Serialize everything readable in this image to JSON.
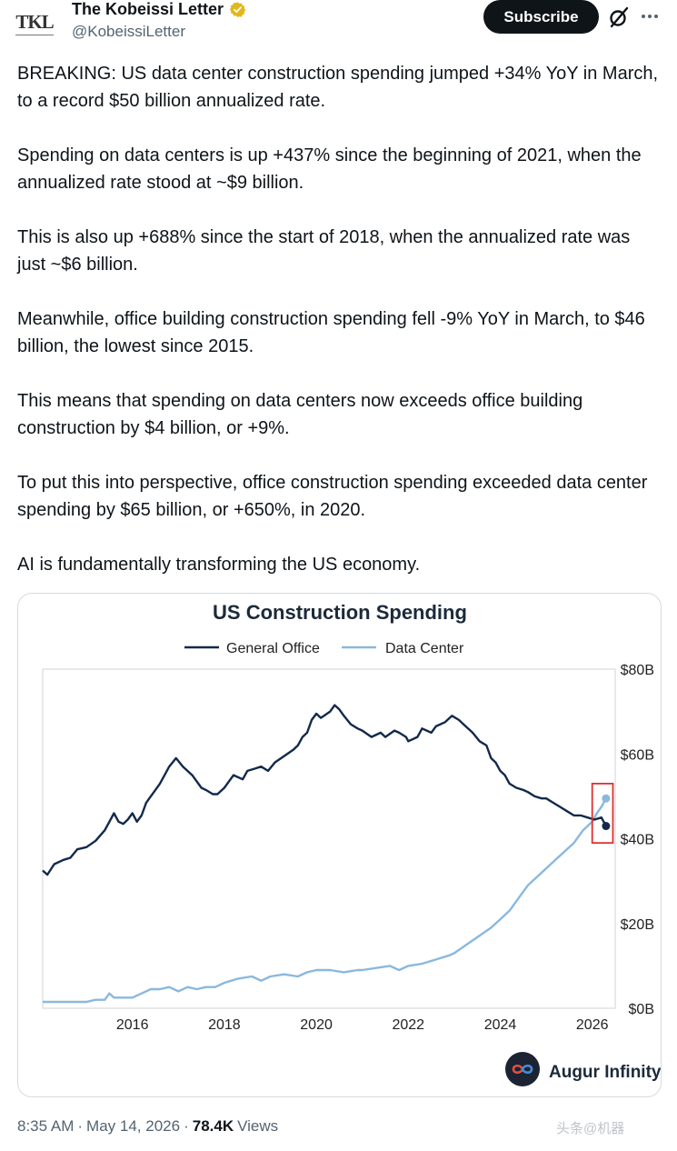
{
  "header": {
    "avatar_text": "TKL",
    "display_name": "The Kobeissi Letter",
    "handle": "@KobeissiLetter",
    "subscribe_label": "Subscribe",
    "icons": [
      "grok-icon",
      "more-icon",
      "verified-badge-icon"
    ]
  },
  "tweet": {
    "paragraphs": [
      "BREAKING: US data center construction spending jumped +34% YoY in March, to a record $50 billion annualized rate.",
      "Spending on data centers is up +437% since the beginning of 2021, when the annualized rate stood at ~$9 billion.",
      "This is also up +688% since the start of 2018, when the annualized rate was just ~$6 billion.",
      "Meanwhile, office building construction spending fell -9% YoY in March, to $46 billion, the lowest since 2015.",
      "This means that spending on data centers now exceeds office building construction by $4 billion, or +9%.",
      "To put this into perspective, office construction spending exceeded data center spending by $65 billion, or +650%, in 2020.",
      "AI is fundamentally transforming the US economy."
    ]
  },
  "chart_data": {
    "type": "line",
    "title": "US Construction Spending",
    "xlabel": "",
    "ylabel": "",
    "x_ticks": [
      "2016",
      "2018",
      "2020",
      "2022",
      "2024",
      "2026"
    ],
    "y_ticks": [
      "$0B",
      "$20B",
      "$40B",
      "$60B",
      "$80B"
    ],
    "xlim": [
      2014.05,
      2026.5
    ],
    "ylim": [
      0,
      80
    ],
    "y_axis_side": "right",
    "legend_position": "top",
    "grid": false,
    "highlight_box": {
      "x": [
        2026.0,
        2026.45
      ],
      "y": [
        39,
        53
      ],
      "color": "#e03030"
    },
    "series": [
      {
        "name": "General Office",
        "color": "#13294b",
        "points": [
          [
            2014.05,
            32.5
          ],
          [
            2014.15,
            31.5
          ],
          [
            2014.3,
            34
          ],
          [
            2014.5,
            35
          ],
          [
            2014.65,
            35.5
          ],
          [
            2014.8,
            37.5
          ],
          [
            2015.0,
            38
          ],
          [
            2015.2,
            39.5
          ],
          [
            2015.4,
            42
          ],
          [
            2015.5,
            44
          ],
          [
            2015.6,
            46
          ],
          [
            2015.7,
            44
          ],
          [
            2015.8,
            43.5
          ],
          [
            2015.9,
            44.5
          ],
          [
            2016.0,
            46
          ],
          [
            2016.1,
            44
          ],
          [
            2016.2,
            45.5
          ],
          [
            2016.3,
            48.5
          ],
          [
            2016.4,
            50
          ],
          [
            2016.5,
            51.5
          ],
          [
            2016.6,
            53
          ],
          [
            2016.7,
            55
          ],
          [
            2016.8,
            57
          ],
          [
            2016.95,
            59
          ],
          [
            2017.1,
            57
          ],
          [
            2017.3,
            55
          ],
          [
            2017.5,
            52
          ],
          [
            2017.6,
            51.5
          ],
          [
            2017.75,
            50.5
          ],
          [
            2017.85,
            50.5
          ],
          [
            2018.0,
            52
          ],
          [
            2018.1,
            53.5
          ],
          [
            2018.2,
            55
          ],
          [
            2018.4,
            54
          ],
          [
            2018.5,
            56
          ],
          [
            2018.65,
            56.5
          ],
          [
            2018.8,
            57
          ],
          [
            2018.95,
            56
          ],
          [
            2019.1,
            58
          ],
          [
            2019.3,
            59.5
          ],
          [
            2019.5,
            61
          ],
          [
            2019.6,
            62
          ],
          [
            2019.7,
            64
          ],
          [
            2019.8,
            65
          ],
          [
            2019.9,
            68
          ],
          [
            2020.0,
            69.5
          ],
          [
            2020.1,
            68.5
          ],
          [
            2020.3,
            70
          ],
          [
            2020.4,
            71.5
          ],
          [
            2020.5,
            70.5
          ],
          [
            2020.6,
            69
          ],
          [
            2020.75,
            67
          ],
          [
            2020.9,
            66
          ],
          [
            2021.0,
            65.5
          ],
          [
            2021.2,
            64
          ],
          [
            2021.4,
            65
          ],
          [
            2021.5,
            64
          ],
          [
            2021.7,
            65.5
          ],
          [
            2021.8,
            65
          ],
          [
            2021.95,
            64
          ],
          [
            2022.0,
            63
          ],
          [
            2022.2,
            64
          ],
          [
            2022.3,
            66
          ],
          [
            2022.5,
            65
          ],
          [
            2022.6,
            66.5
          ],
          [
            2022.8,
            67.5
          ],
          [
            2022.95,
            69
          ],
          [
            2023.1,
            68
          ],
          [
            2023.2,
            67
          ],
          [
            2023.4,
            65
          ],
          [
            2023.55,
            63
          ],
          [
            2023.7,
            62
          ],
          [
            2023.8,
            59
          ],
          [
            2023.9,
            58
          ],
          [
            2024.0,
            56
          ],
          [
            2024.1,
            55
          ],
          [
            2024.2,
            53
          ],
          [
            2024.35,
            52
          ],
          [
            2024.5,
            51.5
          ],
          [
            2024.6,
            51
          ],
          [
            2024.75,
            50
          ],
          [
            2024.9,
            49.5
          ],
          [
            2025.0,
            49.5
          ],
          [
            2025.15,
            48.5
          ],
          [
            2025.3,
            47.5
          ],
          [
            2025.45,
            46.5
          ],
          [
            2025.6,
            45.5
          ],
          [
            2025.75,
            45.5
          ],
          [
            2025.9,
            45
          ],
          [
            2026.05,
            44.5
          ],
          [
            2026.2,
            45
          ],
          [
            2026.3,
            43
          ]
        ]
      },
      {
        "name": "Data Center",
        "color": "#8ab8de",
        "points": [
          [
            2014.05,
            1.5
          ],
          [
            2014.5,
            1.5
          ],
          [
            2015.0,
            1.5
          ],
          [
            2015.2,
            2
          ],
          [
            2015.4,
            2
          ],
          [
            2015.5,
            3.5
          ],
          [
            2015.6,
            2.5
          ],
          [
            2016.0,
            2.5
          ],
          [
            2016.2,
            3.5
          ],
          [
            2016.4,
            4.5
          ],
          [
            2016.6,
            4.5
          ],
          [
            2016.8,
            5
          ],
          [
            2017.0,
            4
          ],
          [
            2017.2,
            5
          ],
          [
            2017.4,
            4.5
          ],
          [
            2017.6,
            5
          ],
          [
            2017.8,
            5
          ],
          [
            2018.0,
            6
          ],
          [
            2018.3,
            7
          ],
          [
            2018.6,
            7.5
          ],
          [
            2018.8,
            6.5
          ],
          [
            2019.0,
            7.5
          ],
          [
            2019.3,
            8
          ],
          [
            2019.6,
            7.5
          ],
          [
            2019.8,
            8.5
          ],
          [
            2020.0,
            9
          ],
          [
            2020.3,
            9
          ],
          [
            2020.6,
            8.5
          ],
          [
            2020.9,
            9
          ],
          [
            2021.0,
            9
          ],
          [
            2021.3,
            9.5
          ],
          [
            2021.6,
            10
          ],
          [
            2021.8,
            9
          ],
          [
            2022.0,
            10
          ],
          [
            2022.3,
            10.5
          ],
          [
            2022.6,
            11.5
          ],
          [
            2022.9,
            12.5
          ],
          [
            2023.0,
            13
          ],
          [
            2023.2,
            14.5
          ],
          [
            2023.4,
            16
          ],
          [
            2023.6,
            17.5
          ],
          [
            2023.8,
            19
          ],
          [
            2024.0,
            21
          ],
          [
            2024.2,
            23
          ],
          [
            2024.4,
            26
          ],
          [
            2024.6,
            29
          ],
          [
            2024.8,
            31
          ],
          [
            2025.0,
            33
          ],
          [
            2025.2,
            35
          ],
          [
            2025.4,
            37
          ],
          [
            2025.6,
            39
          ],
          [
            2025.8,
            42
          ],
          [
            2026.0,
            44
          ],
          [
            2026.1,
            46
          ],
          [
            2026.2,
            47.5
          ],
          [
            2026.3,
            49.5
          ]
        ]
      }
    ]
  },
  "card": {
    "brand_name": "Augur Infinity",
    "icons": [
      "augur-infinity-logo-icon"
    ]
  },
  "footer": {
    "time": "8:35 AM",
    "separator": "·",
    "date": "May 14, 2026",
    "views_count": "78.4K",
    "views_label": "Views",
    "watermark": "头条@机器"
  }
}
